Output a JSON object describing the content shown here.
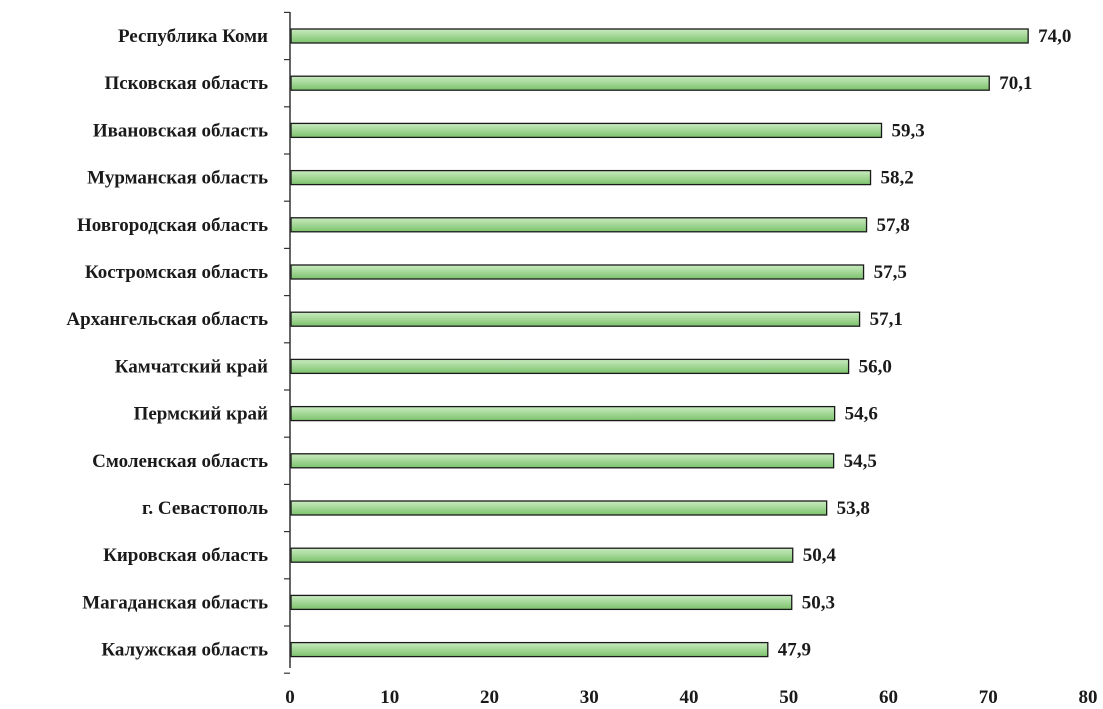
{
  "chart_data": {
    "type": "bar",
    "orientation": "horizontal",
    "categories": [
      "Республика Коми",
      "Псковская область",
      "Ивановская область",
      "Мурманская область",
      "Новгородская область",
      "Костромская область",
      "Архангельская область",
      "Камчатский край",
      "Пермский край",
      "Смоленская область",
      "г. Севастополь",
      "Кировская область",
      "Магаданская область",
      "Калужская область"
    ],
    "values": [
      74.0,
      70.1,
      59.3,
      58.2,
      57.8,
      57.5,
      57.1,
      56.0,
      54.6,
      54.5,
      53.8,
      50.4,
      50.3,
      47.9
    ],
    "value_labels": [
      "74,0",
      "70,1",
      "59,3",
      "58,2",
      "57,8",
      "57,5",
      "57,1",
      "56,0",
      "54,6",
      "54,5",
      "53,8",
      "50,4",
      "50,3",
      "47,9"
    ],
    "xlim": [
      0,
      80
    ],
    "x_ticks": [
      "0",
      "10",
      "20",
      "30",
      "40",
      "50",
      "60",
      "70",
      "80"
    ],
    "title": "",
    "xlabel": "",
    "ylabel": "",
    "grid": false,
    "legend": "none",
    "colors": {
      "bar_fill_light": "#c9ebc0",
      "bar_fill_dark": "#7cc26c",
      "bar_stroke": "#1a1a1a",
      "axis": "#333333",
      "text": "#1a1a1a"
    }
  }
}
